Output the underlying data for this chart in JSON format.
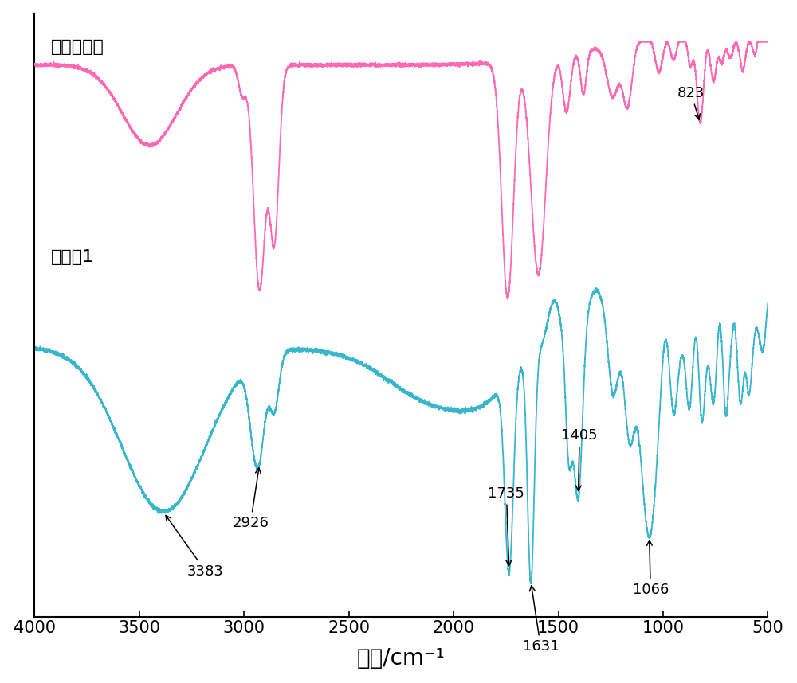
{
  "xlabel": "波数/cm⁻¹",
  "xlabel_fontsize": 20,
  "xlim": [
    4000,
    500
  ],
  "pink_label": "环氧大豆油",
  "cyan_label": "实施例1",
  "pink_color": "#FF69B4",
  "cyan_color": "#38B6CC",
  "background_color": "#ffffff",
  "tick_fontsize": 15,
  "annot_fontsize": 13
}
